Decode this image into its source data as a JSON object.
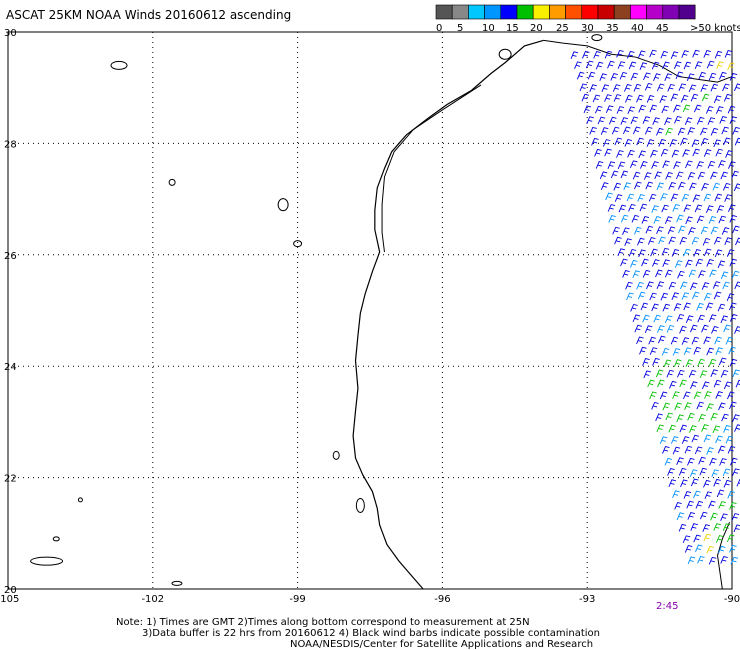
{
  "header": {
    "title": "ASCAT 25KM NOAA Winds 20160612 ascending"
  },
  "scale": {
    "labels": [
      "0",
      "5",
      "10",
      "15",
      "20",
      "25",
      "30",
      "35",
      "40",
      "45",
      ">50 knots"
    ],
    "colors": [
      "#555555",
      "#888888",
      "#00c8ff",
      "#0096ff",
      "#0000ff",
      "#00c000",
      "#f8f000",
      "#ff9c00",
      "#ff5000",
      "#ff0000",
      "#c80000",
      "#8c4020",
      "#ff00ff",
      "#b400c8",
      "#8000b4",
      "#50008c"
    ]
  },
  "map": {
    "lon_min": -105,
    "lon_max": -90,
    "lat_min": 20,
    "lat_max": 30,
    "lon_ticks": [
      -105,
      -102,
      -99,
      -96,
      -93,
      -90
    ],
    "lon_tick_labels": [
      "-105",
      "-102",
      "-99",
      "-96",
      "-93",
      "-90"
    ],
    "lat_ticks": [
      20,
      22,
      24,
      26,
      28,
      30
    ],
    "lat_tick_labels": [
      "20",
      "22",
      "24",
      "26",
      "28",
      "30"
    ],
    "colors": {
      "frame": "#000000",
      "grid": "#000000",
      "coast": "#000000",
      "barb_blue": "#0000e0",
      "barb_mid": "#0090ff",
      "barb_green": "#00c000",
      "barb_yellow": "#f0d000"
    }
  },
  "time_label": "2:45",
  "notes": {
    "line1": "Note: 1) Times are GMT 2)Times along bottom correspond to measurement at 25N",
    "line2": "3)Data buffer is 22 hrs from 20160612 4) Black wind barbs indicate possible contamination",
    "line3": "NOAA/NESDIS/Center for Satellite Applications and Research"
  }
}
